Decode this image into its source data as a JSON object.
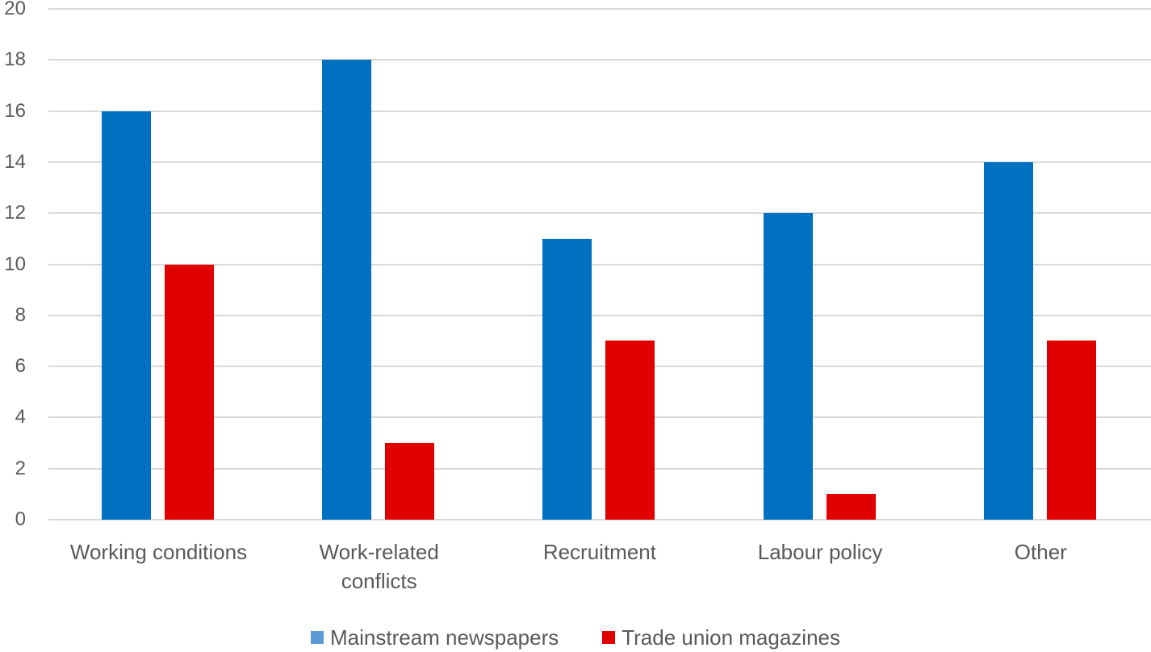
{
  "chart_data": {
    "type": "bar",
    "title": "",
    "xlabel": "",
    "ylabel": "",
    "ylim": [
      0,
      20
    ],
    "yticks": [
      0,
      2,
      4,
      6,
      8,
      10,
      12,
      14,
      16,
      18,
      20
    ],
    "grid": true,
    "legend_position": "bottom",
    "categories": [
      "Working conditions",
      "Work-related conflicts",
      "Recruitment",
      "Labour policy",
      "Other"
    ],
    "category_lines": [
      [
        "Working conditions"
      ],
      [
        "Work-related",
        "conflicts"
      ],
      [
        "Recruitment"
      ],
      [
        "Labour policy"
      ],
      [
        "Other"
      ]
    ],
    "series": [
      {
        "name": "Mainstream newspapers",
        "color": "#0070c0",
        "legend_color": "#5b9bd5",
        "values": [
          16,
          18,
          11,
          12,
          14
        ]
      },
      {
        "name": "Trade union magazines",
        "color": "#e00000",
        "legend_color": "#e00000",
        "values": [
          10,
          3,
          7,
          1,
          7
        ]
      }
    ]
  }
}
